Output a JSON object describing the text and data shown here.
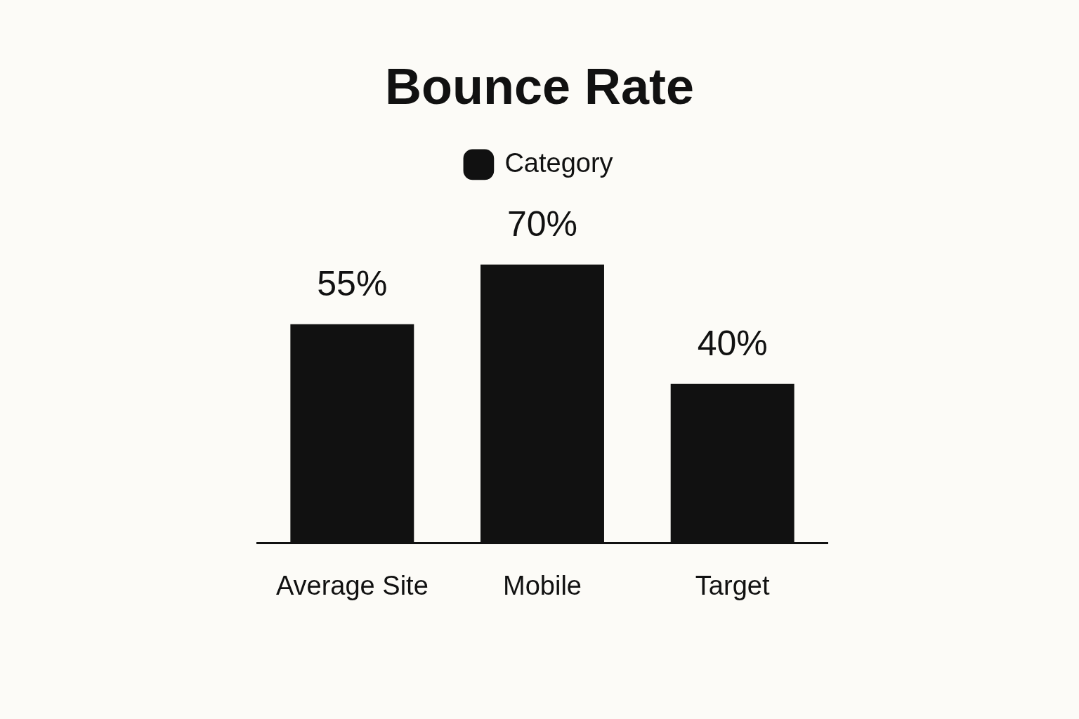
{
  "chart_data": {
    "type": "bar",
    "title": "Bounce Rate",
    "categories": [
      "Average Site",
      "Mobile",
      "Target"
    ],
    "series": [
      {
        "name": "Category",
        "color": "#111111",
        "values": [
          55,
          70,
          40
        ],
        "value_labels": [
          "55%",
          "70%",
          "40%"
        ]
      }
    ],
    "legend": "top",
    "grid": false
  }
}
